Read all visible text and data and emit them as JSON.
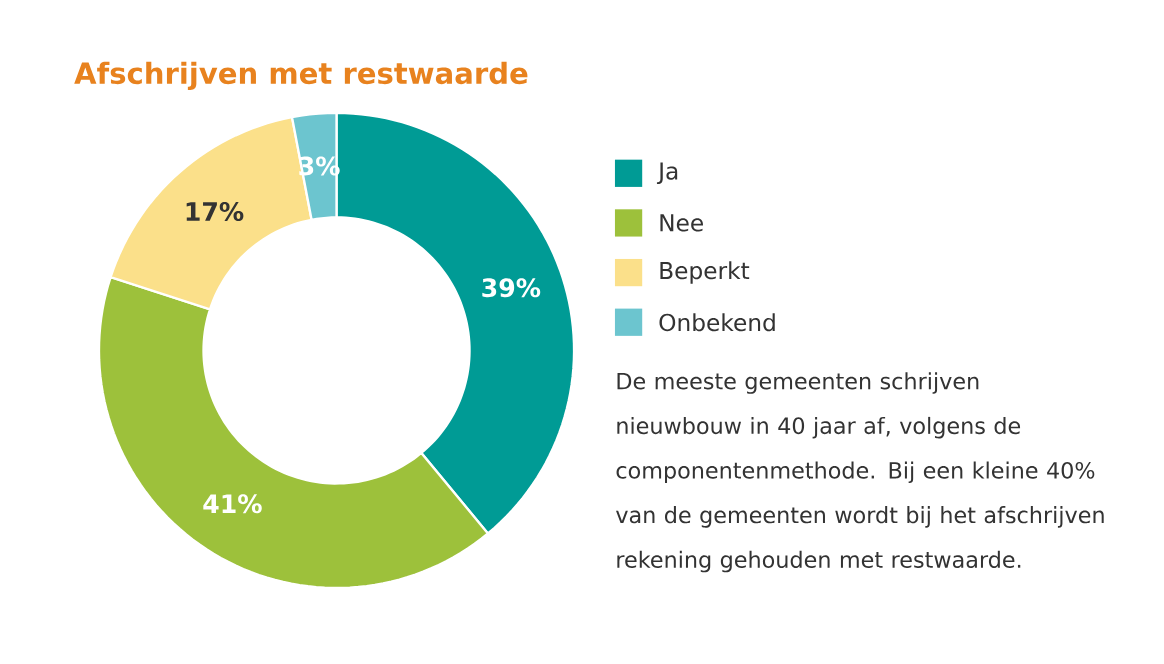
{
  "chart_data": {
    "type": "donut",
    "title": "Afschrijven met restwaarde",
    "categories": [
      "Ja",
      "Nee",
      "Beperkt",
      "Onbekend"
    ],
    "values": [
      39,
      41,
      17,
      3
    ],
    "value_labels": [
      "39%",
      "41%",
      "17%",
      "3%"
    ],
    "colors": [
      "#009b95",
      "#9dc13b",
      "#fbe08a",
      "#6cc5cf"
    ],
    "legend": "right",
    "annotations": [
      "De meeste gemeenten schrijven nieuwbouw in 40 jaar af, volgens de componentenmethode. Bij een kleine 40% van de gemeenten wordt bij het afschrijven rekening gehouden met restwaarde."
    ]
  }
}
